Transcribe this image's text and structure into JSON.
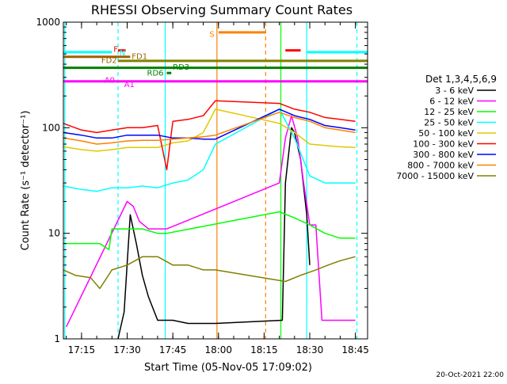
{
  "chart_data": {
    "type": "line",
    "title": "RHESSI Observing Summary Count Rates",
    "xlabel": "Start Time (05-Nov-05 17:09:02)",
    "ylabel": "Count Rate (s⁻¹ detector⁻¹)",
    "y_scale": "log",
    "ylim": [
      1,
      1000
    ],
    "xlim": [
      "17:09:02",
      "18:49:00"
    ],
    "x_ticks": [
      "17:15",
      "17:30",
      "17:45",
      "18:00",
      "18:15",
      "18:30",
      "18:45"
    ],
    "y_ticks": [
      "1",
      "10",
      "100",
      "1000"
    ],
    "timestamp": "20-Oct-2021 22:00",
    "legend": {
      "header": "Det 1,3,4,5,6,9",
      "position": "right",
      "entries": [
        {
          "label": "3 - 6 keV",
          "color": "#000000"
        },
        {
          "label": "6 - 12 keV",
          "color": "#ff00ff"
        },
        {
          "label": "12 - 25 keV",
          "color": "#00ff00"
        },
        {
          "label": "25 - 50 keV",
          "color": "#00ffff"
        },
        {
          "label": "50 - 100 keV",
          "color": "#e0c800"
        },
        {
          "label": "100 - 300 keV",
          "color": "#ff0000"
        },
        {
          "label": "300 - 800 keV",
          "color": "#0000ff"
        },
        {
          "label": "800 - 7000 keV",
          "color": "#ff8000"
        },
        {
          "label": "7000 - 15000 keV",
          "color": "#808000"
        }
      ]
    },
    "flag_labels": [
      "N",
      "F",
      "FD1",
      "FD2",
      "RD3",
      "RD6",
      "A0",
      "A1",
      "S"
    ],
    "series": [
      {
        "name": "3 - 6 keV",
        "color": "#000000",
        "points": [
          [
            "17:27",
            1.0
          ],
          [
            "17:29",
            1.8
          ],
          [
            "17:31",
            15
          ],
          [
            "17:33",
            8
          ],
          [
            "17:35",
            4
          ],
          [
            "17:37",
            2.5
          ],
          [
            "17:40",
            1.5
          ],
          [
            "17:45",
            1.5
          ],
          [
            "17:50",
            1.4
          ],
          [
            "17:55",
            1.4
          ],
          [
            "17:59",
            1.4
          ],
          [
            "18:21",
            1.5
          ],
          [
            "18:22",
            30
          ],
          [
            "18:24",
            100
          ],
          [
            "18:25",
            90
          ],
          [
            "18:27",
            50
          ],
          [
            "18:29",
            15
          ],
          [
            "18:30",
            5
          ]
        ]
      },
      {
        "name": "6 - 12 keV",
        "color": "#ff00ff",
        "points": [
          [
            "17:10",
            1.3
          ],
          [
            "17:30",
            20
          ],
          [
            "17:32",
            18
          ],
          [
            "17:34",
            13
          ],
          [
            "17:37",
            11
          ],
          [
            "17:41",
            11
          ],
          [
            "17:43",
            11
          ],
          [
            "18:20",
            30
          ],
          [
            "18:22",
            80
          ],
          [
            "18:24",
            130
          ],
          [
            "18:26",
            80
          ],
          [
            "18:28",
            30
          ],
          [
            "18:30",
            12
          ],
          [
            "18:32",
            12
          ],
          [
            "18:34",
            1.5
          ],
          [
            "18:40",
            1.5
          ],
          [
            "18:45",
            1.5
          ]
        ]
      },
      {
        "name": "12 - 25 keV",
        "color": "#00ff00",
        "points": [
          [
            "17:09",
            8
          ],
          [
            "17:15",
            8
          ],
          [
            "17:21",
            8
          ],
          [
            "17:24",
            7
          ],
          [
            "17:25",
            11
          ],
          [
            "17:30",
            11
          ],
          [
            "17:35",
            11
          ],
          [
            "17:40",
            10
          ],
          [
            "17:43",
            10
          ],
          [
            "18:20",
            16
          ],
          [
            "18:25",
            14
          ],
          [
            "18:30",
            12
          ],
          [
            "18:35",
            10
          ],
          [
            "18:40",
            9
          ],
          [
            "18:45",
            9
          ]
        ]
      },
      {
        "name": "25 - 50 keV",
        "color": "#00ffff",
        "points": [
          [
            "17:09",
            28
          ],
          [
            "17:15",
            26
          ],
          [
            "17:20",
            25
          ],
          [
            "17:25",
            27
          ],
          [
            "17:30",
            27
          ],
          [
            "17:35",
            28
          ],
          [
            "17:40",
            27
          ],
          [
            "17:45",
            30
          ],
          [
            "17:50",
            32
          ],
          [
            "17:55",
            40
          ],
          [
            "17:59",
            70
          ],
          [
            "18:20",
            150
          ],
          [
            "18:25",
            80
          ],
          [
            "18:30",
            35
          ],
          [
            "18:35",
            30
          ],
          [
            "18:40",
            30
          ],
          [
            "18:45",
            30
          ]
        ]
      },
      {
        "name": "50 - 100 keV",
        "color": "#e0c800",
        "points": [
          [
            "17:09",
            66
          ],
          [
            "17:15",
            62
          ],
          [
            "17:20",
            60
          ],
          [
            "17:25",
            62
          ],
          [
            "17:30",
            65
          ],
          [
            "17:35",
            65
          ],
          [
            "17:40",
            65
          ],
          [
            "17:45",
            72
          ],
          [
            "17:50",
            75
          ],
          [
            "17:55",
            90
          ],
          [
            "17:59",
            150
          ],
          [
            "18:20",
            110
          ],
          [
            "18:25",
            90
          ],
          [
            "18:30",
            70
          ],
          [
            "18:35",
            68
          ],
          [
            "18:40",
            66
          ],
          [
            "18:45",
            65
          ]
        ]
      },
      {
        "name": "100 - 300 keV",
        "color": "#ff0000",
        "points": [
          [
            "17:09",
            110
          ],
          [
            "17:15",
            95
          ],
          [
            "17:20",
            90
          ],
          [
            "17:25",
            95
          ],
          [
            "17:30",
            100
          ],
          [
            "17:35",
            100
          ],
          [
            "17:40",
            105
          ],
          [
            "17:43",
            40
          ],
          [
            "17:45",
            115
          ],
          [
            "17:50",
            120
          ],
          [
            "17:55",
            130
          ],
          [
            "17:59",
            180
          ],
          [
            "18:20",
            170
          ],
          [
            "18:25",
            150
          ],
          [
            "18:30",
            140
          ],
          [
            "18:35",
            125
          ],
          [
            "18:40",
            120
          ],
          [
            "18:45",
            115
          ]
        ]
      },
      {
        "name": "300 - 800 keV",
        "color": "#0000ff",
        "points": [
          [
            "17:09",
            90
          ],
          [
            "17:15",
            85
          ],
          [
            "17:20",
            80
          ],
          [
            "17:25",
            80
          ],
          [
            "17:30",
            85
          ],
          [
            "17:35",
            85
          ],
          [
            "17:40",
            85
          ],
          [
            "17:45",
            80
          ],
          [
            "17:50",
            80
          ],
          [
            "17:55",
            78
          ],
          [
            "17:59",
            78
          ],
          [
            "18:20",
            150
          ],
          [
            "18:25",
            130
          ],
          [
            "18:30",
            120
          ],
          [
            "18:35",
            105
          ],
          [
            "18:40",
            100
          ],
          [
            "18:45",
            95
          ]
        ]
      },
      {
        "name": "800 - 7000 keV",
        "color": "#ff8000",
        "points": [
          [
            "17:09",
            80
          ],
          [
            "17:15",
            75
          ],
          [
            "17:20",
            70
          ],
          [
            "17:25",
            72
          ],
          [
            "17:30",
            75
          ],
          [
            "17:35",
            76
          ],
          [
            "17:40",
            76
          ],
          [
            "17:45",
            78
          ],
          [
            "17:50",
            80
          ],
          [
            "17:55",
            82
          ],
          [
            "17:59",
            85
          ],
          [
            "18:20",
            140
          ],
          [
            "18:25",
            125
          ],
          [
            "18:30",
            115
          ],
          [
            "18:35",
            100
          ],
          [
            "18:40",
            95
          ],
          [
            "18:45",
            90
          ]
        ]
      },
      {
        "name": "7000 - 15000 keV",
        "color": "#808000",
        "points": [
          [
            "17:09",
            4.5
          ],
          [
            "17:13",
            4
          ],
          [
            "17:18",
            3.8
          ],
          [
            "17:21",
            3
          ],
          [
            "17:25",
            4.5
          ],
          [
            "17:30",
            5
          ],
          [
            "17:35",
            6
          ],
          [
            "17:40",
            6
          ],
          [
            "17:45",
            5
          ],
          [
            "17:50",
            5
          ],
          [
            "17:55",
            4.5
          ],
          [
            "17:59",
            4.5
          ],
          [
            "18:22",
            3.5
          ],
          [
            "18:27",
            4
          ],
          [
            "18:32",
            4.5
          ],
          [
            "18:36",
            5
          ],
          [
            "18:40",
            5.5
          ],
          [
            "18:45",
            6
          ]
        ]
      }
    ],
    "vertical_lines": [
      {
        "time": "17:09:30",
        "color": "#00ffff",
        "style": "solid"
      },
      {
        "time": "17:27:00",
        "color": "#00ffff",
        "style": "dashed"
      },
      {
        "time": "17:42:30",
        "color": "#00ffff",
        "style": "solid"
      },
      {
        "time": "17:59:30",
        "color": "#ff8000",
        "style": "solid"
      },
      {
        "time": "18:15:30",
        "color": "#ff8000",
        "style": "dashed"
      },
      {
        "time": "18:20:30",
        "color": "#00ff00",
        "style": "solid"
      },
      {
        "time": "18:29:00",
        "color": "#00ffff",
        "style": "solid"
      },
      {
        "time": "18:45:30",
        "color": "#00ffff",
        "style": "dashed"
      }
    ],
    "flag_bars": [
      {
        "label": "N",
        "color": "#00ffff",
        "y": 520,
        "intervals": [
          [
            "17:09:02",
            "17:25:00"
          ],
          [
            "18:29:00",
            "18:49:00"
          ]
        ]
      },
      {
        "label": "F",
        "color": "#ff0000",
        "y": 540,
        "intervals": [
          [
            "17:27:00",
            "17:29:30"
          ],
          [
            "18:22:00",
            "18:27:00"
          ]
        ]
      },
      {
        "label": "FD1",
        "color": "#a06000",
        "y": 470,
        "intervals": [
          [
            "17:09:02",
            "17:31:00"
          ]
        ]
      },
      {
        "label": "FD2",
        "color": "#808000",
        "y": 430,
        "intervals": [
          [
            "17:27:00",
            "18:49:00"
          ]
        ]
      },
      {
        "label": "RD3",
        "color": "#008000",
        "y": 370,
        "intervals": [
          [
            "17:09:02",
            "18:49:00"
          ]
        ]
      },
      {
        "label": "RD6",
        "color": "#008000",
        "y": 330,
        "intervals": [
          [
            "17:43:00",
            "17:44:30"
          ]
        ]
      },
      {
        "label": "A0",
        "color": "#ff00ff",
        "y": 275,
        "intervals": [
          [
            "17:09:02",
            "18:49:00"
          ]
        ]
      },
      {
        "label": "S",
        "color": "#ff8000",
        "y": 800,
        "intervals": [
          [
            "18:00:00",
            "18:15:30"
          ]
        ]
      }
    ]
  }
}
